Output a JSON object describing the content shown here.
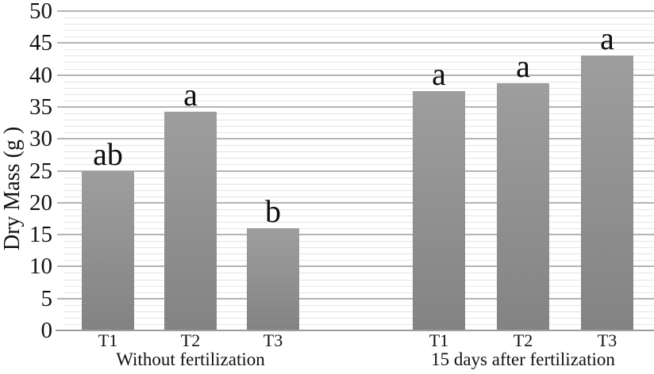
{
  "chart_data": {
    "type": "bar",
    "title": "",
    "xlabel": "",
    "ylabel": "Dry Mass (g )",
    "ylim": [
      0,
      50
    ],
    "ytick_step": 5,
    "minor_gridline_step": 1,
    "grid": true,
    "legend": "none",
    "yticks": [
      0,
      5,
      10,
      15,
      20,
      25,
      30,
      35,
      40,
      45,
      50
    ],
    "groups": [
      {
        "label": "Without fertilization",
        "categories": [
          "T1",
          "T2",
          "T3"
        ],
        "values": [
          25,
          34.3,
          16
        ],
        "sig_letters": [
          "ab",
          "a",
          "b"
        ]
      },
      {
        "label": "15 days after fertilization",
        "categories": [
          "T1",
          "T2",
          "T3"
        ],
        "values": [
          37.5,
          38.7,
          43
        ],
        "sig_letters": [
          "a",
          "a",
          "a"
        ]
      }
    ],
    "colors": {
      "bar_top": "#9e9e9e",
      "bar_bottom": "#838383",
      "minor_gridline": "#e5e5e5",
      "major_gridline": "#b4b4b4",
      "axis_line": "#9c9c9c",
      "text": "#111111",
      "background": "#ffffff"
    }
  }
}
